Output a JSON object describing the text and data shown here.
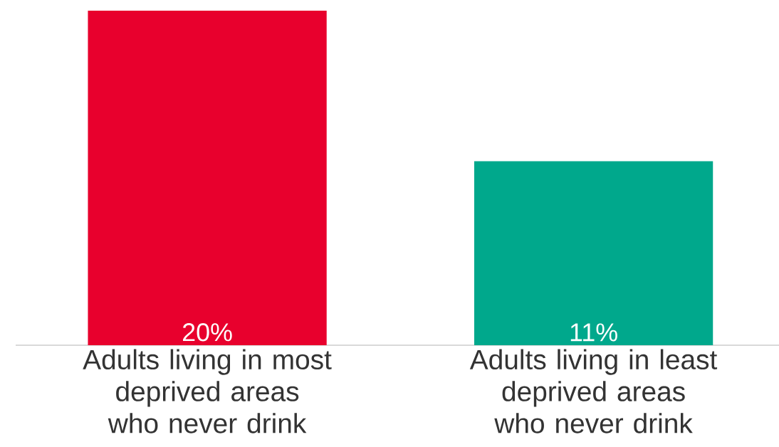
{
  "chart_data": {
    "type": "bar",
    "categories": [
      "Adults living in most deprived areas who never drink",
      "Adults living in least deprived areas who never drink"
    ],
    "values": [
      20,
      11
    ],
    "colors": [
      "#e8002d",
      "#00a88c"
    ],
    "value_labels": [
      "20%",
      "11%"
    ]
  }
}
